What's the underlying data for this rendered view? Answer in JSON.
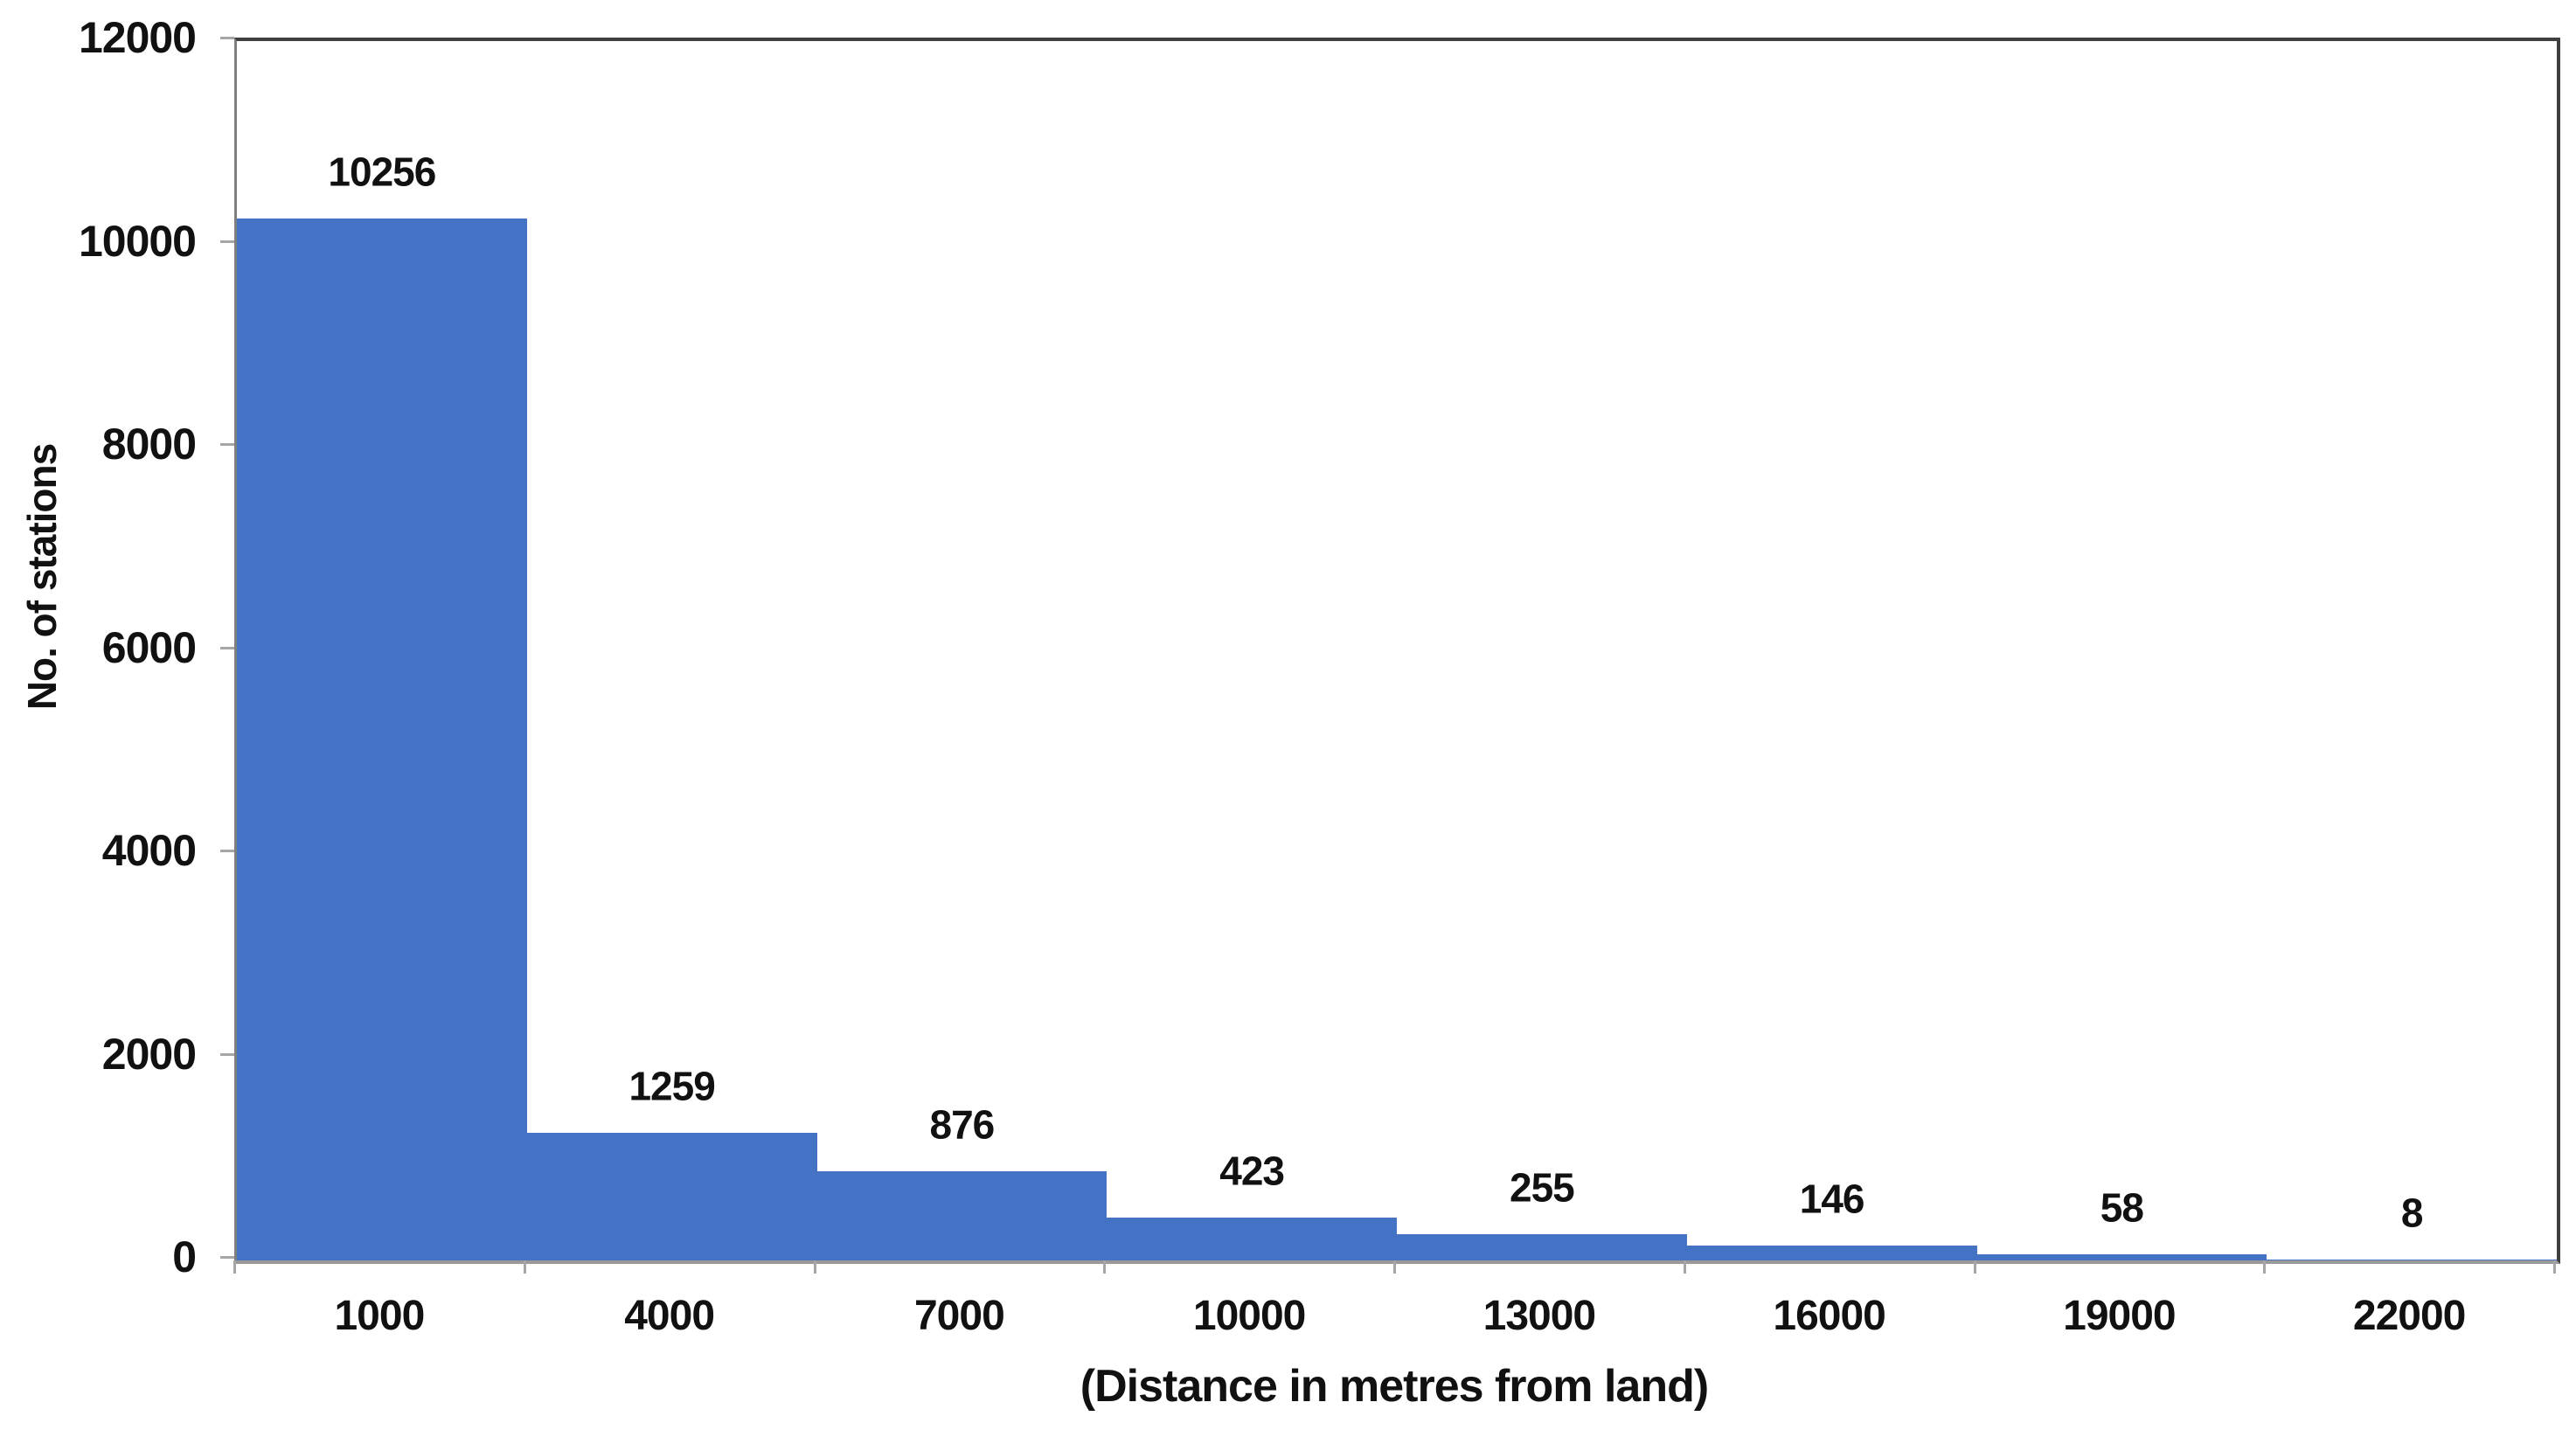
{
  "chart_data": {
    "type": "bar",
    "title": "",
    "categories": [
      "1000",
      "4000",
      "7000",
      "10000",
      "13000",
      "16000",
      "19000",
      "22000"
    ],
    "values": [
      10256,
      1259,
      876,
      423,
      255,
      146,
      58,
      8
    ],
    "data_labels": [
      "10256",
      "1259",
      "876",
      "423",
      "255",
      "146",
      "58",
      "8"
    ],
    "xlabel": "(Distance in metres from land)",
    "ylabel": "No. of stations",
    "y_ticks": [
      0,
      2000,
      4000,
      6000,
      8000,
      10000,
      12000
    ],
    "y_tick_labels": [
      "0",
      "2000",
      "4000",
      "6000",
      "8000",
      "10000",
      "12000"
    ],
    "ylim": [
      0,
      12000
    ],
    "bar_color": "#4472C4",
    "plot_border_color": "#3f3f3f",
    "axis_line_color": "#7f7f7f",
    "tick_mark_color": "#a6a6a6",
    "label_color": "#111111",
    "grid": "off",
    "legend": "none",
    "gap_width_percent": 0,
    "bars_touch": true
  }
}
